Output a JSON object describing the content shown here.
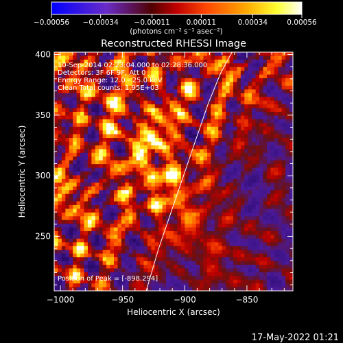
{
  "chart_data": {
    "type": "heatmap",
    "title": "Reconstructed RHESSI Image",
    "xlabel": "Heliocentric X (arcsec)",
    "ylabel": "Heliocentric Y (arcsec)",
    "xlim": [
      -1005,
      -813
    ],
    "ylim": [
      205,
      402
    ],
    "x_ticks": [
      -1000,
      -950,
      -900,
      -850
    ],
    "x_tick_labels": [
      "−1000",
      "−950",
      "−900",
      "−850"
    ],
    "y_ticks": [
      250,
      300,
      350,
      400
    ],
    "y_tick_labels": [
      "250",
      "300",
      "350",
      "400"
    ],
    "colorbar": {
      "min": -0.00056,
      "max": 0.00056,
      "ticks": [
        -0.00056,
        -0.00034,
        -0.00011,
        0.00011,
        0.00034,
        0.00056
      ],
      "tick_labels": [
        "−0.00056",
        "−0.00034",
        "−0.00011",
        "0.00011",
        "0.00034",
        "0.00056"
      ],
      "unit_label": "(photons cm⁻² s⁻¹ asec⁻²)",
      "colors": [
        "#0000ff",
        "#6a2cc8",
        "#c00000",
        "#ff4800",
        "#ffaa00",
        "#ffff30",
        "#ffffff"
      ]
    },
    "annotations": [
      "10-Sep-2014 02:23:04.000 to 02:28:36.000",
      "Detectors: 3F 6F 9F, Att 0",
      "Energy Range: 12.0 - 25.0 keV",
      "Clean     Total counts: 1.95E+03",
      "Position of Peak = [-898,294]"
    ],
    "limb_curve_x": [
      -931,
      -921,
      -911,
      -901,
      -891,
      -881,
      -871,
      -862
    ],
    "limb_curve_y": [
      205,
      240,
      270,
      300,
      330,
      360,
      385,
      402
    ],
    "peak": [
      -898,
      294
    ],
    "background_color": "#4a1a9a",
    "grid": false
  },
  "footer": {
    "date": "17-May-2022 01:21"
  }
}
